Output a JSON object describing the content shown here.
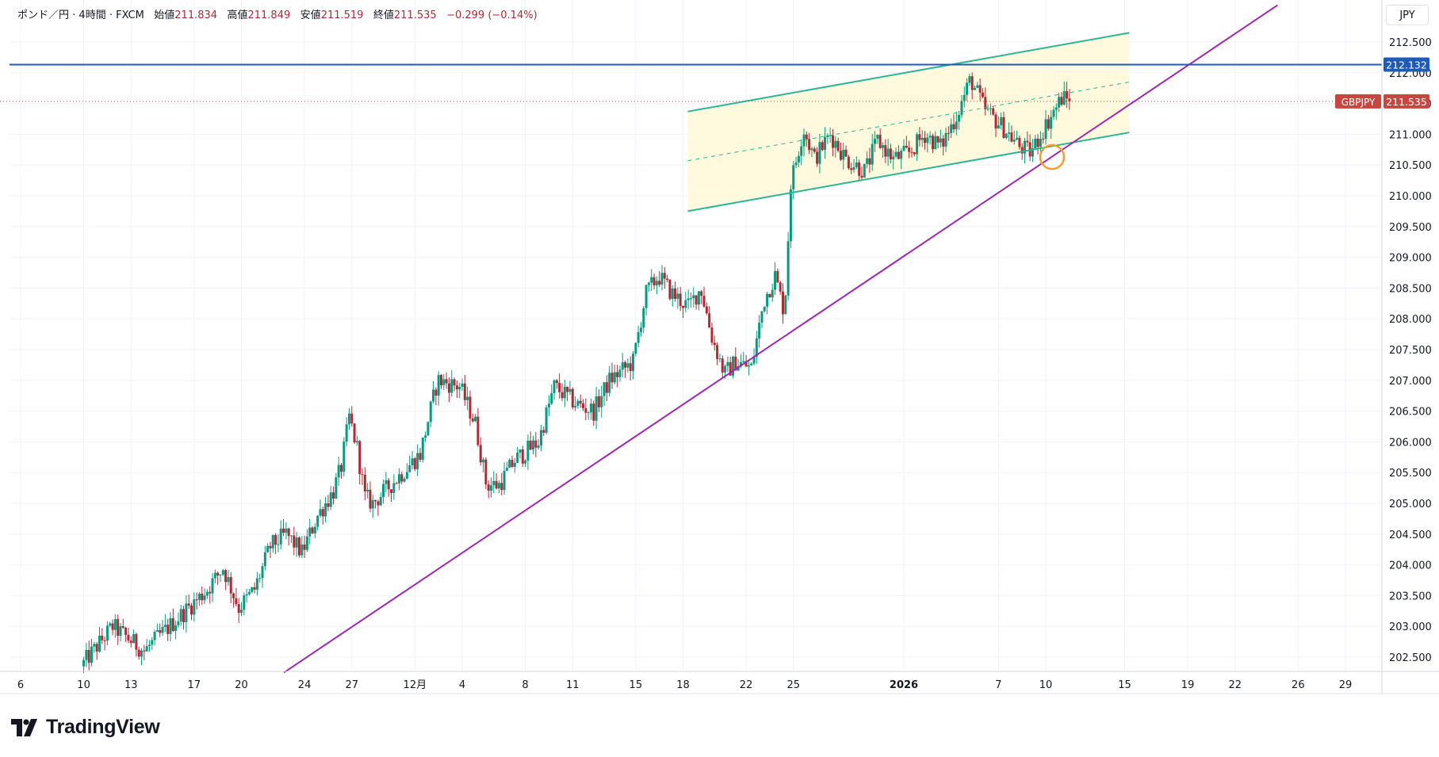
{
  "legend": {
    "symbol_name": "ポンド／円",
    "interval": "4時間",
    "source": "FXCM",
    "open_label": "始値",
    "open": "211.834",
    "high_label": "高値",
    "high": "211.849",
    "low_label": "安値",
    "low": "211.519",
    "close_label": "終値",
    "close": "211.535",
    "change": "−0.299 (−0.14%)"
  },
  "currency_label": "JPY",
  "brand": "TradingView",
  "colors": {
    "up": "#089981",
    "down": "#b22833",
    "channel": "#2bb596",
    "trendline": "#9c27b0",
    "resistance": "#1e5bb8",
    "price_tag": "#c9453f",
    "circle": "#f0a030"
  },
  "chart_data": {
    "type": "candlestick",
    "symbol": "GBPJPY",
    "ylim": [
      202.2,
      212.85
    ],
    "y_ticks": [
      "202.500",
      "203.000",
      "203.500",
      "204.000",
      "204.500",
      "205.000",
      "205.500",
      "206.000",
      "206.500",
      "207.000",
      "207.500",
      "208.000",
      "208.500",
      "209.000",
      "209.500",
      "210.000",
      "210.500",
      "211.000",
      "211.500",
      "212.000",
      "212.500"
    ],
    "x_ticks": [
      "6",
      "10",
      "13",
      "17",
      "20",
      "24",
      "27",
      "12月",
      "4",
      "8",
      "11",
      "15",
      "18",
      "22",
      "25",
      "2026",
      "7",
      "10",
      "15",
      "19",
      "22",
      "26",
      "29"
    ],
    "x_tick_days": [
      -24,
      -20,
      -17,
      -13,
      -10,
      -6,
      -3,
      1,
      4,
      8,
      11,
      15,
      18,
      22,
      25,
      32,
      38,
      41,
      46,
      50,
      53,
      57,
      60
    ],
    "price_labels": [
      {
        "name": "",
        "value": "212.132",
        "price": 212.132
      },
      {
        "name": "GBPJPY",
        "value": "211.535",
        "price": 211.535
      }
    ],
    "anchors": [
      [
        -20,
        202.35
      ],
      [
        -18,
        203.0
      ],
      [
        -16,
        202.6
      ],
      [
        -14,
        203.1
      ],
      [
        -12,
        203.6
      ],
      [
        -11,
        203.95
      ],
      [
        -10,
        203.3
      ],
      [
        -9,
        203.6
      ],
      [
        -8,
        204.3
      ],
      [
        -7,
        204.5
      ],
      [
        -6,
        204.2
      ],
      [
        -5,
        204.8
      ],
      [
        -4,
        205.2
      ],
      [
        -3.5,
        205.6
      ],
      [
        -3,
        206.4
      ],
      [
        -2.5,
        205.9
      ],
      [
        -2,
        205.1
      ],
      [
        -1.5,
        205.0
      ],
      [
        0,
        205.4
      ],
      [
        1.5,
        205.8
      ],
      [
        2.6,
        207.0
      ],
      [
        4,
        206.9
      ],
      [
        5,
        206.3
      ],
      [
        5.7,
        205.3
      ],
      [
        6.5,
        205.3
      ],
      [
        7.5,
        205.7
      ],
      [
        9,
        206.0
      ],
      [
        10,
        206.9
      ],
      [
        11.5,
        206.6
      ],
      [
        12.5,
        206.5
      ],
      [
        13.5,
        207.0
      ],
      [
        15,
        207.3
      ],
      [
        15.8,
        208.4
      ],
      [
        16.6,
        208.7
      ],
      [
        17.5,
        208.4
      ],
      [
        18.5,
        208.2
      ],
      [
        19.3,
        208.5
      ],
      [
        20,
        207.7
      ],
      [
        20.8,
        207.1
      ],
      [
        21.5,
        207.3
      ],
      [
        22.5,
        207.2
      ],
      [
        23.3,
        208.3
      ],
      [
        24,
        208.7
      ],
      [
        24.6,
        208.1
      ],
      [
        25,
        210.2
      ],
      [
        25.8,
        211.1
      ],
      [
        26.5,
        210.6
      ],
      [
        27.5,
        211.0
      ],
      [
        28.5,
        210.6
      ],
      [
        29.7,
        210.4
      ],
      [
        30.5,
        210.9
      ],
      [
        31.5,
        210.6
      ],
      [
        32.5,
        210.7
      ],
      [
        33.5,
        211.0
      ],
      [
        34.5,
        210.8
      ],
      [
        35.5,
        211.3
      ],
      [
        36.4,
        211.9
      ],
      [
        37.3,
        211.4
      ],
      [
        38.5,
        211.1
      ],
      [
        39.5,
        210.8
      ],
      [
        40.2,
        210.7
      ],
      [
        41.5,
        211.3
      ],
      [
        42.2,
        211.6
      ],
      [
        42.6,
        211.55
      ]
    ],
    "drawings": {
      "channel_upper": [
        [
          18.3,
          211.37
        ],
        [
          46.3,
          212.65
        ]
      ],
      "channel_mid": [
        [
          18.3,
          210.57
        ],
        [
          46.3,
          211.85
        ]
      ],
      "channel_lower": [
        [
          18.3,
          209.75
        ],
        [
          46.3,
          211.03
        ]
      ],
      "trendline": [
        [
          -7.3,
          202.25
        ],
        [
          55.7,
          213.1
        ]
      ],
      "resistance": 212.132,
      "circle": [
        41.4,
        210.63
      ]
    }
  }
}
